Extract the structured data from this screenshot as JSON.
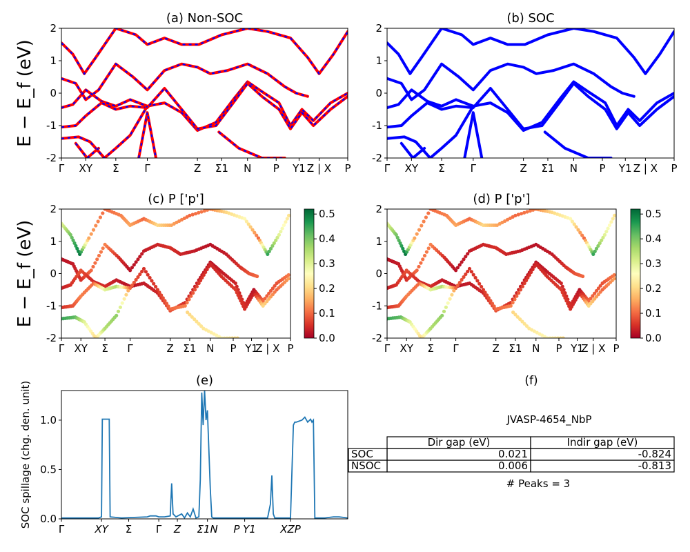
{
  "chart_data": [
    {
      "type": "line",
      "panel": "a",
      "title": "(a) Non-SOC",
      "ylabel": "E − E_f (eV)",
      "ylim": [
        -2,
        2
      ],
      "yticks": [
        -2,
        -1,
        0,
        1,
        2
      ],
      "kpath_labels": [
        "Γ",
        "XY",
        "Σ",
        "Γ",
        "Z",
        "Σ1",
        "N",
        "P",
        "Y1",
        "Z | X",
        "P"
      ],
      "kpath_positions": [
        0,
        0.085,
        0.19,
        0.3,
        0.475,
        0.56,
        0.65,
        0.75,
        0.83,
        0.9,
        1.0
      ],
      "series_style": "red solid with blue dashed overlay",
      "colors": {
        "primary": "#ff0000",
        "overlay": "#0000ff"
      },
      "series": [
        {
          "x": [
            0,
            0.04,
            0.08,
            0.12,
            0.19,
            0.26,
            0.3,
            0.36,
            0.42,
            0.48,
            0.56,
            0.65,
            0.72,
            0.8,
            0.86,
            0.9,
            0.95,
            1.0
          ],
          "y": [
            1.55,
            1.2,
            0.6,
            1.1,
            2.0,
            1.8,
            1.5,
            1.7,
            1.5,
            1.5,
            1.8,
            2.0,
            1.9,
            1.7,
            1.1,
            0.6,
            1.2,
            1.9
          ]
        },
        {
          "x": [
            0,
            0.05,
            0.085,
            0.13,
            0.19,
            0.25,
            0.3,
            0.36,
            0.42,
            0.475,
            0.52,
            0.58,
            0.65,
            0.72,
            0.78,
            0.82,
            0.86
          ],
          "y": [
            0.45,
            0.3,
            -0.2,
            0.1,
            0.9,
            0.5,
            0.1,
            0.7,
            0.9,
            0.8,
            0.6,
            0.7,
            0.9,
            0.6,
            0.2,
            0.0,
            -0.1
          ]
        },
        {
          "x": [
            0,
            0.04,
            0.085,
            0.14,
            0.19,
            0.24,
            0.3,
            0.36,
            0.42,
            0.475,
            0.54,
            0.6,
            0.65,
            0.7,
            0.76,
            0.8,
            0.84,
            0.88,
            0.94,
            1.0
          ],
          "y": [
            -0.45,
            -0.35,
            0.1,
            -0.25,
            -0.4,
            -0.2,
            -0.4,
            -0.3,
            -0.6,
            -1.15,
            -0.9,
            -0.2,
            0.35,
            0.05,
            -0.3,
            -1.0,
            -0.5,
            -0.85,
            -0.3,
            0.0
          ]
        },
        {
          "x": [
            0,
            0.05,
            0.085,
            0.14,
            0.19,
            0.24,
            0.3,
            0.36,
            0.42,
            0.475,
            0.54,
            0.6,
            0.65,
            0.7,
            0.76,
            0.8,
            0.84,
            0.88,
            0.94,
            1.0
          ],
          "y": [
            -1.05,
            -1.0,
            -0.7,
            -0.3,
            -0.5,
            -0.4,
            -0.45,
            0.15,
            -0.5,
            -1.1,
            -1.0,
            -0.3,
            0.3,
            -0.1,
            -0.5,
            -1.1,
            -0.6,
            -1.0,
            -0.5,
            -0.1
          ]
        },
        {
          "x": [
            0,
            0.06,
            0.1,
            0.15,
            0.19,
            0.24,
            0.3
          ],
          "y": [
            -1.4,
            -1.35,
            -1.5,
            -2.0,
            -1.7,
            -1.3,
            -0.4
          ]
        },
        {
          "x": [
            0.27,
            0.3,
            0.33
          ],
          "y": [
            -2.0,
            -0.6,
            -2.0
          ]
        },
        {
          "x": [
            0.05,
            0.09,
            0.13
          ],
          "y": [
            -1.55,
            -2.0,
            -1.7
          ]
        },
        {
          "x": [
            0.55,
            0.62,
            0.7,
            0.78
          ],
          "y": [
            -1.2,
            -1.7,
            -2.0,
            -2.0
          ]
        }
      ]
    },
    {
      "type": "line",
      "panel": "b",
      "title": "(b) SOC",
      "ylim": [
        -2,
        2
      ],
      "yticks": [
        -2,
        -1,
        0,
        1,
        2
      ],
      "kpath_labels": [
        "Γ",
        "XY",
        "Σ",
        "Γ",
        "Z",
        "Σ1",
        "N",
        "P",
        "Y1",
        "Z | X",
        "P"
      ],
      "kpath_positions": [
        0,
        0.085,
        0.19,
        0.3,
        0.475,
        0.56,
        0.65,
        0.75,
        0.83,
        0.9,
        1.0
      ],
      "colors": {
        "primary": "#0000ff"
      },
      "series": [
        {
          "x": [
            0,
            0.04,
            0.08,
            0.12,
            0.19,
            0.26,
            0.3,
            0.36,
            0.42,
            0.48,
            0.56,
            0.65,
            0.72,
            0.8,
            0.86,
            0.9,
            0.95,
            1.0
          ],
          "y": [
            1.55,
            1.2,
            0.6,
            1.1,
            2.0,
            1.8,
            1.5,
            1.7,
            1.5,
            1.5,
            1.8,
            2.0,
            1.9,
            1.7,
            1.1,
            0.6,
            1.2,
            1.9
          ]
        },
        {
          "x": [
            0,
            0.05,
            0.085,
            0.13,
            0.19,
            0.25,
            0.3,
            0.36,
            0.42,
            0.475,
            0.52,
            0.58,
            0.65,
            0.72,
            0.78,
            0.82,
            0.86
          ],
          "y": [
            0.45,
            0.3,
            -0.2,
            0.1,
            0.9,
            0.5,
            0.1,
            0.7,
            0.9,
            0.8,
            0.6,
            0.7,
            0.9,
            0.6,
            0.2,
            0.0,
            -0.1
          ]
        },
        {
          "x": [
            0,
            0.04,
            0.085,
            0.14,
            0.19,
            0.24,
            0.3,
            0.36,
            0.42,
            0.475,
            0.54,
            0.6,
            0.65,
            0.7,
            0.76,
            0.8,
            0.84,
            0.88,
            0.94,
            1.0
          ],
          "y": [
            -0.45,
            -0.35,
            0.1,
            -0.25,
            -0.4,
            -0.2,
            -0.4,
            -0.3,
            -0.6,
            -1.15,
            -0.9,
            -0.2,
            0.35,
            0.05,
            -0.3,
            -1.0,
            -0.5,
            -0.85,
            -0.3,
            0.0
          ]
        },
        {
          "x": [
            0,
            0.05,
            0.085,
            0.14,
            0.19,
            0.24,
            0.3,
            0.36,
            0.42,
            0.475,
            0.54,
            0.6,
            0.65,
            0.7,
            0.76,
            0.8,
            0.84,
            0.88,
            0.94,
            1.0
          ],
          "y": [
            -1.05,
            -1.0,
            -0.7,
            -0.3,
            -0.5,
            -0.4,
            -0.45,
            0.15,
            -0.5,
            -1.1,
            -1.0,
            -0.3,
            0.3,
            -0.1,
            -0.5,
            -1.1,
            -0.6,
            -1.0,
            -0.5,
            -0.1
          ]
        },
        {
          "x": [
            0,
            0.06,
            0.1,
            0.15,
            0.19,
            0.24,
            0.3
          ],
          "y": [
            -1.4,
            -1.35,
            -1.5,
            -2.0,
            -1.7,
            -1.3,
            -0.4
          ]
        },
        {
          "x": [
            0.27,
            0.3,
            0.33
          ],
          "y": [
            -2.0,
            -0.6,
            -2.0
          ]
        },
        {
          "x": [
            0.05,
            0.09,
            0.13
          ],
          "y": [
            -1.55,
            -2.0,
            -1.7
          ]
        },
        {
          "x": [
            0.55,
            0.62,
            0.7,
            0.78
          ],
          "y": [
            -1.2,
            -1.7,
            -2.0,
            -2.0
          ]
        }
      ]
    },
    {
      "type": "scatter",
      "panel": "c",
      "title": "(c)  P ['p']",
      "ylabel": "E − E_f (eV)",
      "ylim": [
        -2,
        2
      ],
      "yticks": [
        -2,
        -1,
        0,
        1,
        2
      ],
      "kpath_labels": [
        "Γ",
        "XY",
        "Σ",
        "Γ",
        "Z",
        "Σ1",
        "N",
        "P",
        "Y1",
        "Z | X",
        "P"
      ],
      "kpath_positions": [
        0,
        0.085,
        0.19,
        0.3,
        0.475,
        0.56,
        0.65,
        0.75,
        0.83,
        0.9,
        1.0
      ],
      "colorbar": {
        "cmap": "RdYlGn",
        "ticks": [
          0.0,
          0.1,
          0.2,
          0.3,
          0.4,
          0.5
        ],
        "range": [
          0,
          0.52
        ]
      },
      "bands": [
        {
          "x": [
            0,
            0.04,
            0.08,
            0.12,
            0.19,
            0.26,
            0.3,
            0.36,
            0.42,
            0.48,
            0.56,
            0.65,
            0.72,
            0.8,
            0.86,
            0.9,
            0.95,
            1.0
          ],
          "y": [
            1.55,
            1.2,
            0.6,
            1.1,
            2.0,
            1.8,
            1.5,
            1.7,
            1.5,
            1.5,
            1.8,
            2.0,
            1.9,
            1.7,
            1.1,
            0.6,
            1.2,
            1.9
          ],
          "weight": [
            0.3,
            0.4,
            0.5,
            0.15,
            0.1,
            0.12,
            0.15,
            0.1,
            0.2,
            0.15,
            0.1,
            0.12,
            0.2,
            0.25,
            0.1,
            0.45,
            0.3,
            0.2
          ]
        },
        {
          "x": [
            0,
            0.05,
            0.085,
            0.13,
            0.19,
            0.25,
            0.3,
            0.36,
            0.42,
            0.475,
            0.52,
            0.58,
            0.65,
            0.72,
            0.78,
            0.82,
            0.86
          ],
          "y": [
            0.45,
            0.3,
            -0.2,
            0.1,
            0.9,
            0.5,
            0.1,
            0.7,
            0.9,
            0.8,
            0.6,
            0.7,
            0.9,
            0.6,
            0.2,
            0.0,
            -0.1
          ],
          "weight": [
            0.02,
            0.03,
            0.05,
            0.1,
            0.12,
            0.05,
            0.02,
            0.03,
            0.04,
            0.05,
            0.04,
            0.03,
            0.02,
            0.03,
            0.05,
            0.08,
            0.1
          ]
        },
        {
          "x": [
            0,
            0.04,
            0.085,
            0.14,
            0.19,
            0.24,
            0.3,
            0.36,
            0.42,
            0.475,
            0.54,
            0.6,
            0.65,
            0.7,
            0.76,
            0.8,
            0.84,
            0.88,
            0.94,
            1.0
          ],
          "y": [
            -0.45,
            -0.35,
            0.1,
            -0.25,
            -0.4,
            -0.2,
            -0.4,
            -0.3,
            -0.6,
            -1.15,
            -0.9,
            -0.2,
            0.35,
            0.05,
            -0.3,
            -1.0,
            -0.5,
            -0.85,
            -0.3,
            0.0
          ],
          "weight": [
            0.03,
            0.05,
            0.08,
            0.04,
            0.05,
            0.03,
            0.02,
            0.03,
            0.04,
            0.08,
            0.05,
            0.03,
            0.02,
            0.03,
            0.04,
            0.05,
            0.02,
            0.1,
            0.08,
            0.12
          ]
        },
        {
          "x": [
            0,
            0.05,
            0.085,
            0.14,
            0.19,
            0.24,
            0.3,
            0.36,
            0.42,
            0.475,
            0.54,
            0.6,
            0.65,
            0.7,
            0.76,
            0.8,
            0.84,
            0.88,
            0.94,
            1.0
          ],
          "y": [
            -1.05,
            -1.0,
            -0.7,
            -0.3,
            -0.5,
            -0.4,
            -0.45,
            0.15,
            -0.5,
            -1.1,
            -1.0,
            -0.3,
            0.3,
            -0.1,
            -0.5,
            -1.1,
            -0.6,
            -1.0,
            -0.5,
            -0.1
          ],
          "weight": [
            0.05,
            0.08,
            0.12,
            0.1,
            0.3,
            0.35,
            0.1,
            0.05,
            0.06,
            0.1,
            0.12,
            0.06,
            0.04,
            0.05,
            0.06,
            0.05,
            0.03,
            0.2,
            0.1,
            0.15
          ]
        },
        {
          "x": [
            0,
            0.06,
            0.1,
            0.15,
            0.19,
            0.24,
            0.3
          ],
          "y": [
            -1.4,
            -1.35,
            -1.5,
            -2.0,
            -1.7,
            -1.3,
            -0.4
          ],
          "weight": [
            0.45,
            0.42,
            0.3,
            0.2,
            0.35,
            0.38,
            0.12
          ]
        },
        {
          "x": [
            0.55,
            0.62,
            0.7,
            0.78
          ],
          "y": [
            -1.2,
            -1.7,
            -2.0,
            -2.0
          ],
          "weight": [
            0.2,
            0.22,
            0.25,
            0.2
          ]
        }
      ]
    },
    {
      "type": "scatter",
      "panel": "d",
      "title": "(d) P ['p']",
      "ylim": [
        -2,
        2
      ],
      "yticks": [
        -2,
        -1,
        0,
        1,
        2
      ],
      "kpath_labels": [
        "Γ",
        "XY",
        "Σ",
        "Γ",
        "Z",
        "Σ1",
        "N",
        "P",
        "Y1",
        "Z | X",
        "P"
      ],
      "kpath_positions": [
        0,
        0.085,
        0.19,
        0.3,
        0.475,
        0.56,
        0.65,
        0.75,
        0.83,
        0.9,
        1.0
      ],
      "colorbar": {
        "cmap": "RdYlGn",
        "ticks": [
          0.0,
          0.1,
          0.2,
          0.3,
          0.4,
          0.5
        ],
        "range": [
          0,
          0.52
        ]
      },
      "bands": "same as panel c"
    },
    {
      "type": "line",
      "panel": "e",
      "title": "(e)",
      "ylabel": "SOC spillage (chg. den. unit)",
      "ylim": [
        0,
        1.3
      ],
      "yticks": [
        0.0,
        0.5,
        1.0
      ],
      "kpath_labels": [
        "Γ",
        "XY",
        "Σ",
        "Γ",
        "Z",
        "Σ1N",
        "P Y1",
        "XZP"
      ],
      "kpath_positions": [
        0,
        0.14,
        0.235,
        0.34,
        0.405,
        0.51,
        0.64,
        0.8
      ],
      "colors": {
        "line": "#1f77b4"
      },
      "series": [
        {
          "x": [
            0,
            0.13,
            0.14,
            0.143,
            0.16,
            0.167,
            0.17,
            0.21,
            0.3,
            0.31,
            0.33,
            0.34,
            0.36,
            0.38,
            0.385,
            0.39,
            0.4,
            0.42,
            0.43,
            0.44,
            0.45,
            0.46,
            0.47,
            0.48,
            0.485,
            0.49,
            0.495,
            0.5,
            0.505,
            0.51,
            0.52,
            0.525,
            0.53,
            0.6,
            0.7,
            0.72,
            0.73,
            0.735,
            0.74,
            0.745,
            0.78,
            0.8,
            0.81,
            0.815,
            0.82,
            0.84,
            0.85,
            0.86,
            0.87,
            0.875,
            0.88,
            0.885,
            0.9,
            0.92,
            0.95,
            0.97,
            1.0
          ],
          "y": [
            0.01,
            0.01,
            0.02,
            1.01,
            1.01,
            1.01,
            0.02,
            0.01,
            0.02,
            0.03,
            0.03,
            0.02,
            0.02,
            0.03,
            0.36,
            0.05,
            0.02,
            0.05,
            0.01,
            0.06,
            0.02,
            0.1,
            0.01,
            0.02,
            0.4,
            1.28,
            0.95,
            1.3,
            1.0,
            1.1,
            0.3,
            0.02,
            0.01,
            0.01,
            0.01,
            0.01,
            0.15,
            0.44,
            0.05,
            0.01,
            0.01,
            0.01,
            0.95,
            0.98,
            0.98,
            1.0,
            1.03,
            0.98,
            1.01,
            0.98,
            1.0,
            0.01,
            0.01,
            0.01,
            0.02,
            0.02,
            0.01
          ]
        }
      ]
    }
  ],
  "panel_f": {
    "title": "(f)",
    "material": "JVASP-4654_NbP",
    "columns": [
      "",
      "Dir gap (eV)",
      "Indir gap (eV)"
    ],
    "rows": [
      {
        "label": "SOC",
        "dir": "0.021",
        "indir": "-0.824"
      },
      {
        "label": "NSOC",
        "dir": "0.006",
        "indir": "-0.813"
      }
    ],
    "peaks": "# Peaks = 3"
  }
}
